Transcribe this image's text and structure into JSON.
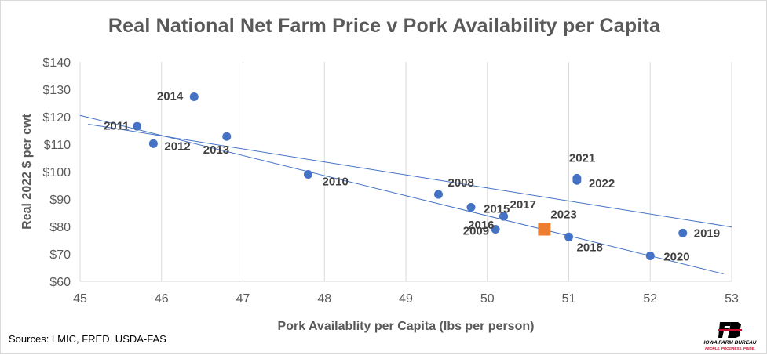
{
  "chart_data": {
    "type": "scatter",
    "title": "Real National Net Farm Price v Pork Availability per Capita",
    "xlabel": "Pork Availablity per Capita (lbs per person)",
    "ylabel": "Real 2022 $ per cwt",
    "xlim": [
      45,
      53
    ],
    "ylim": [
      60,
      140
    ],
    "x_ticks": [
      "45",
      "46",
      "47",
      "48",
      "49",
      "50",
      "51",
      "52",
      "53"
    ],
    "y_ticks": [
      "$60",
      "$70",
      "$80",
      "$90",
      "$100",
      "$110",
      "$120",
      "$130",
      "$140"
    ],
    "grid": "vertical",
    "legend": "none",
    "series": [
      {
        "color": "#4472c4",
        "marker": "circle",
        "points": [
          {
            "label": "2008",
            "x": 49.4,
            "y": 91.7
          },
          {
            "label": "2009",
            "x": 50.1,
            "y": 79.0
          },
          {
            "label": "2010",
            "x": 47.8,
            "y": 99.0
          },
          {
            "label": "2011",
            "x": 45.7,
            "y": 116.5
          },
          {
            "label": "2012",
            "x": 45.9,
            "y": 110.2
          },
          {
            "label": "2013",
            "x": 46.8,
            "y": 112.8
          },
          {
            "label": "2014",
            "x": 46.4,
            "y": 127.3
          },
          {
            "label": "2015",
            "x": 49.8,
            "y": 87.0
          },
          {
            "label": "2016",
            "x": 50.2,
            "y": 83.7
          },
          {
            "label": "2017",
            "x": 50.2,
            "y": 83.7
          },
          {
            "label": "2018",
            "x": 51.0,
            "y": 76.2
          },
          {
            "label": "2019",
            "x": 52.4,
            "y": 77.6
          },
          {
            "label": "2020",
            "x": 52.0,
            "y": 69.3
          },
          {
            "label": "2021",
            "x": 51.1,
            "y": 97.6
          },
          {
            "label": "2022",
            "x": 51.1,
            "y": 96.8
          }
        ]
      },
      {
        "color": "#ed7d31",
        "marker": "square",
        "points": [
          {
            "label": "2023",
            "x": 50.7,
            "y": 79.0
          }
        ]
      }
    ],
    "trendlines": [
      {
        "color": "#4472c4",
        "x": [
          45.1,
          53.0
        ],
        "y": [
          117.3,
          79.8
        ]
      },
      {
        "color": "#4472c4",
        "x": [
          45.0,
          52.9
        ],
        "y": [
          120.5,
          62.7
        ]
      }
    ]
  },
  "source_text": "Sources: LMIC, FRED, USDA-FAS",
  "logo": {
    "name": "IOWA FARM BUREAU",
    "tagline": "PEOPLE. PROGRESS. PRIDE.",
    "brand_color": "#c8102e"
  }
}
